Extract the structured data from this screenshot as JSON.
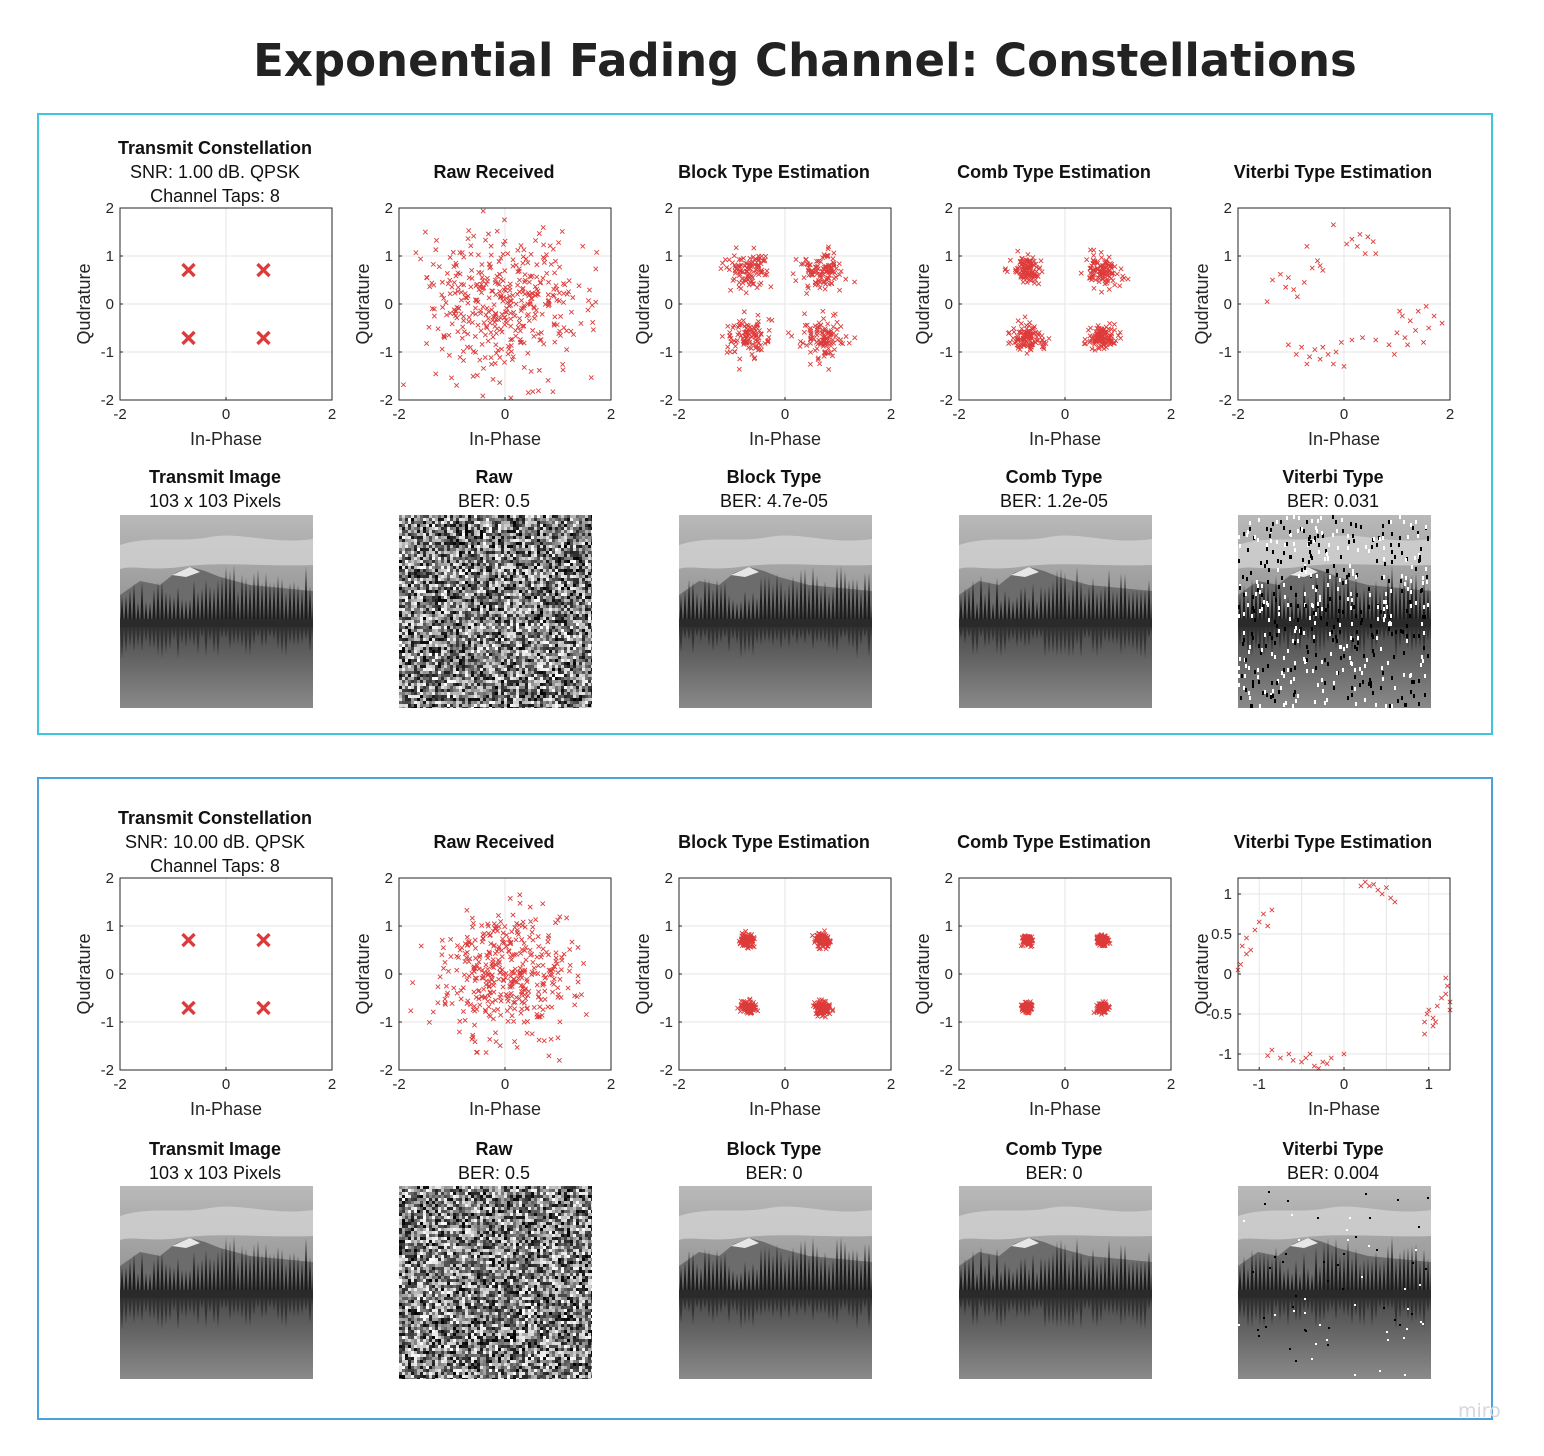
{
  "page": {
    "title": "Exponential Fading Channel: Constellations",
    "watermark": "miro"
  },
  "colors": {
    "marker": "#dd3b3b",
    "panel_border_top": "#3fc6dc",
    "panel_border_bottom": "#4aa1dd",
    "grid": "#e6e6e6",
    "axes": "#262626"
  },
  "panels": [
    {
      "charts": [
        {
          "title_lines": [
            "Transmit Constellation",
            "SNR: 1.00 dB. QPSK",
            "Channel Taps: 8"
          ],
          "xlabel": "In-Phase",
          "ylabel": "Qudrature"
        },
        {
          "title_lines": [
            "Raw Received"
          ],
          "xlabel": "In-Phase",
          "ylabel": "Qudrature"
        },
        {
          "title_lines": [
            "Block Type Estimation"
          ],
          "xlabel": "In-Phase",
          "ylabel": "Qudrature"
        },
        {
          "title_lines": [
            "Comb Type Estimation"
          ],
          "xlabel": "In-Phase",
          "ylabel": "Qudrature"
        },
        {
          "title_lines": [
            "Viterbi Type Estimation"
          ],
          "xlabel": "In-Phase",
          "ylabel": "Qudrature"
        }
      ],
      "images": [
        {
          "title": "Transmit Image",
          "subtitle": "103 x 103 Pixels",
          "kind": "clean"
        },
        {
          "title": "Raw",
          "subtitle": "BER: 0.5",
          "kind": "noise"
        },
        {
          "title": "Block Type",
          "subtitle": "BER: 4.7e-05",
          "kind": "clean"
        },
        {
          "title": "Comb Type",
          "subtitle": "BER: 1.2e-05",
          "kind": "clean"
        },
        {
          "title": "Viterbi Type",
          "subtitle": "BER: 0.031",
          "kind": "corrupt"
        }
      ]
    },
    {
      "charts": [
        {
          "title_lines": [
            "Transmit Constellation",
            "SNR: 10.00 dB. QPSK",
            "Channel Taps: 8"
          ],
          "xlabel": "In-Phase",
          "ylabel": "Qudrature"
        },
        {
          "title_lines": [
            "Raw Received"
          ],
          "xlabel": "In-Phase",
          "ylabel": "Qudrature"
        },
        {
          "title_lines": [
            "Block Type Estimation"
          ],
          "xlabel": "In-Phase",
          "ylabel": "Qudrature"
        },
        {
          "title_lines": [
            "Comb Type Estimation"
          ],
          "xlabel": "In-Phase",
          "ylabel": "Qudrature"
        },
        {
          "title_lines": [
            "Viterbi Type Estimation"
          ],
          "xlabel": "In-Phase",
          "ylabel": "Qudrature"
        }
      ],
      "images": [
        {
          "title": "Transmit Image",
          "subtitle": "103 x 103 Pixels",
          "kind": "clean"
        },
        {
          "title": "Raw",
          "subtitle": "BER: 0.5",
          "kind": "noise"
        },
        {
          "title": "Block Type",
          "subtitle": "BER: 0",
          "kind": "clean"
        },
        {
          "title": "Comb Type",
          "subtitle": "BER: 0",
          "kind": "clean"
        },
        {
          "title": "Viterbi Type",
          "subtitle": "BER: 0.004",
          "kind": "corrupt"
        }
      ]
    }
  ],
  "chart_data": [
    {
      "type": "scatter",
      "title": "Transmit Constellation",
      "subtitle": "SNR: 1.00 dB. QPSK / Channel Taps: 8",
      "xlabel": "In-Phase",
      "ylabel": "Qudrature",
      "xlim": [
        -2,
        2
      ],
      "ylim": [
        -2,
        2
      ],
      "xticks": [
        -2,
        0,
        2
      ],
      "yticks": [
        -2,
        -1,
        0,
        1,
        2
      ],
      "grid": true,
      "marker": "x-large",
      "points": [
        [
          -0.707,
          0.707
        ],
        [
          0.707,
          0.707
        ],
        [
          -0.707,
          -0.707
        ],
        [
          0.707,
          -0.707
        ]
      ]
    },
    {
      "type": "scatter",
      "title": "Raw Received",
      "xlabel": "In-Phase",
      "ylabel": "Qudrature",
      "xlim": [
        -2,
        2
      ],
      "ylim": [
        -2,
        2
      ],
      "xticks": [
        -2,
        0,
        2
      ],
      "yticks": [
        -2,
        -1,
        0,
        1,
        2
      ],
      "grid": true,
      "marker": "x-small",
      "clusters": [
        {
          "center": [
            0,
            0
          ],
          "spread": 0.75,
          "count": 420,
          "distribution": "gaussian"
        }
      ]
    },
    {
      "type": "scatter",
      "title": "Block Type Estimation",
      "xlabel": "In-Phase",
      "ylabel": "Qudrature",
      "xlim": [
        -2,
        2
      ],
      "ylim": [
        -2,
        2
      ],
      "xticks": [
        -2,
        0,
        2
      ],
      "yticks": [
        -2,
        -1,
        0,
        1,
        2
      ],
      "grid": true,
      "marker": "x-small",
      "clusters": [
        {
          "center": [
            -0.707,
            0.707
          ],
          "spread": 0.2,
          "count": 110
        },
        {
          "center": [
            0.707,
            0.707
          ],
          "spread": 0.2,
          "count": 110
        },
        {
          "center": [
            -0.707,
            -0.707
          ],
          "spread": 0.22,
          "count": 110
        },
        {
          "center": [
            0.707,
            -0.707
          ],
          "spread": 0.22,
          "count": 110
        }
      ]
    },
    {
      "type": "scatter",
      "title": "Comb Type Estimation",
      "xlabel": "In-Phase",
      "ylabel": "Qudrature",
      "xlim": [
        -2,
        2
      ],
      "ylim": [
        -2,
        2
      ],
      "xticks": [
        -2,
        0,
        2
      ],
      "yticks": [
        -2,
        -1,
        0,
        1,
        2
      ],
      "grid": true,
      "marker": "x-small",
      "clusters": [
        {
          "center": [
            -0.707,
            0.707
          ],
          "spread": 0.14,
          "count": 110
        },
        {
          "center": [
            0.707,
            0.707
          ],
          "spread": 0.16,
          "count": 110
        },
        {
          "center": [
            -0.707,
            -0.707
          ],
          "spread": 0.14,
          "count": 110
        },
        {
          "center": [
            0.707,
            -0.707
          ],
          "spread": 0.13,
          "count": 110
        }
      ]
    },
    {
      "type": "scatter",
      "title": "Viterbi Type Estimation",
      "xlabel": "In-Phase",
      "ylabel": "Qudrature",
      "xlim": [
        -2,
        2
      ],
      "ylim": [
        -2,
        2
      ],
      "xticks": [
        -2,
        0,
        2
      ],
      "yticks": [
        -2,
        -1,
        0,
        1,
        2
      ],
      "grid": true,
      "marker": "x-small",
      "points": [
        [
          -1.05,
          0.55
        ],
        [
          -0.95,
          0.3
        ],
        [
          -0.88,
          0.15
        ],
        [
          -1.2,
          0.62
        ],
        [
          -1.35,
          0.5
        ],
        [
          -0.75,
          0.45
        ],
        [
          -0.6,
          0.75
        ],
        [
          -0.7,
          1.2
        ],
        [
          -0.5,
          0.9
        ],
        [
          -0.4,
          0.7
        ],
        [
          -1.1,
          0.35
        ],
        [
          -0.2,
          1.65
        ],
        [
          0.05,
          1.25
        ],
        [
          0.15,
          1.35
        ],
        [
          0.3,
          1.45
        ],
        [
          0.45,
          1.4
        ],
        [
          0.55,
          1.3
        ],
        [
          0.25,
          1.2
        ],
        [
          0.4,
          1.05
        ],
        [
          0.6,
          1.05
        ],
        [
          -0.45,
          0.8
        ],
        [
          1.1,
          -0.25
        ],
        [
          1.25,
          -0.35
        ],
        [
          1.4,
          -0.15
        ],
        [
          1.55,
          -0.05
        ],
        [
          1.7,
          -0.25
        ],
        [
          1.85,
          -0.4
        ],
        [
          1.6,
          -0.5
        ],
        [
          1.35,
          -0.55
        ],
        [
          1.15,
          -0.7
        ],
        [
          1.0,
          -0.6
        ],
        [
          0.85,
          -0.85
        ],
        [
          1.2,
          -0.85
        ],
        [
          0.95,
          -1.05
        ],
        [
          0.6,
          -0.75
        ],
        [
          0.35,
          -0.7
        ],
        [
          0.15,
          -0.75
        ],
        [
          -0.05,
          -0.8
        ],
        [
          -0.15,
          -1.0
        ],
        [
          -0.3,
          -1.05
        ],
        [
          -0.55,
          -0.95
        ],
        [
          -0.65,
          -1.1
        ],
        [
          -0.8,
          -0.9
        ],
        [
          -0.9,
          -1.05
        ],
        [
          -1.05,
          -0.85
        ],
        [
          -0.45,
          -1.15
        ],
        [
          -0.2,
          -1.25
        ],
        [
          0.0,
          -1.3
        ],
        [
          -0.7,
          -1.25
        ],
        [
          1.5,
          -0.8
        ],
        [
          1.05,
          -0.15
        ],
        [
          -1.45,
          0.05
        ],
        [
          -0.4,
          -0.9
        ]
      ]
    },
    {
      "type": "scatter",
      "title": "Transmit Constellation",
      "subtitle": "SNR: 10.00 dB. QPSK / Channel Taps: 8",
      "xlabel": "In-Phase",
      "ylabel": "Qudrature",
      "xlim": [
        -2,
        2
      ],
      "ylim": [
        -2,
        2
      ],
      "xticks": [
        -2,
        0,
        2
      ],
      "yticks": [
        -2,
        -1,
        0,
        1,
        2
      ],
      "grid": true,
      "marker": "x-large",
      "points": [
        [
          -0.707,
          0.707
        ],
        [
          0.707,
          0.707
        ],
        [
          -0.707,
          -0.707
        ],
        [
          0.707,
          -0.707
        ]
      ]
    },
    {
      "type": "scatter",
      "title": "Raw Received",
      "xlabel": "In-Phase",
      "ylabel": "Qudrature",
      "xlim": [
        -2,
        2
      ],
      "ylim": [
        -2,
        2
      ],
      "xticks": [
        -2,
        0,
        2
      ],
      "yticks": [
        -2,
        -1,
        0,
        1,
        2
      ],
      "grid": true,
      "marker": "x-small",
      "clusters": [
        {
          "center": [
            0,
            0
          ],
          "spread": 0.65,
          "count": 420,
          "distribution": "gaussian"
        }
      ]
    },
    {
      "type": "scatter",
      "title": "Block Type Estimation",
      "xlabel": "In-Phase",
      "ylabel": "Qudrature",
      "xlim": [
        -2,
        2
      ],
      "ylim": [
        -2,
        2
      ],
      "xticks": [
        -2,
        0,
        2
      ],
      "yticks": [
        -2,
        -1,
        0,
        1,
        2
      ],
      "grid": true,
      "marker": "x-small",
      "clusters": [
        {
          "center": [
            -0.707,
            0.707
          ],
          "spread": 0.07,
          "count": 110
        },
        {
          "center": [
            0.707,
            0.707
          ],
          "spread": 0.07,
          "count": 110
        },
        {
          "center": [
            -0.707,
            -0.707
          ],
          "spread": 0.07,
          "count": 110
        },
        {
          "center": [
            0.707,
            -0.707
          ],
          "spread": 0.07,
          "count": 110
        }
      ]
    },
    {
      "type": "scatter",
      "title": "Comb Type Estimation",
      "xlabel": "In-Phase",
      "ylabel": "Qudrature",
      "xlim": [
        -2,
        2
      ],
      "ylim": [
        -2,
        2
      ],
      "xticks": [
        -2,
        0,
        2
      ],
      "yticks": [
        -2,
        -1,
        0,
        1,
        2
      ],
      "grid": true,
      "marker": "x-small",
      "clusters": [
        {
          "center": [
            -0.707,
            0.707
          ],
          "spread": 0.05,
          "count": 110
        },
        {
          "center": [
            0.707,
            0.707
          ],
          "spread": 0.05,
          "count": 110
        },
        {
          "center": [
            -0.707,
            -0.707
          ],
          "spread": 0.05,
          "count": 110
        },
        {
          "center": [
            0.707,
            -0.707
          ],
          "spread": 0.05,
          "count": 110
        }
      ]
    },
    {
      "type": "scatter",
      "title": "Viterbi Type Estimation",
      "xlabel": "In-Phase",
      "ylabel": "Qudrature",
      "xlim": [
        -1.25,
        1.25
      ],
      "ylim": [
        -1.2,
        1.2
      ],
      "xticks": [
        -1,
        0,
        1
      ],
      "yticks": [
        -1,
        -0.5,
        0,
        0.5,
        1
      ],
      "grid": true,
      "marker": "x-small",
      "points": [
        [
          -1.05,
          0.55
        ],
        [
          -1.15,
          0.45
        ],
        [
          -1.2,
          0.35
        ],
        [
          -1.1,
          0.3
        ],
        [
          -1.0,
          0.65
        ],
        [
          -0.95,
          0.75
        ],
        [
          -0.85,
          0.8
        ],
        [
          -0.9,
          0.6
        ],
        [
          -1.22,
          0.12
        ],
        [
          -1.25,
          0.05
        ],
        [
          -1.15,
          0.25
        ],
        [
          0.25,
          1.15
        ],
        [
          0.3,
          1.1
        ],
        [
          0.4,
          1.05
        ],
        [
          0.45,
          1.0
        ],
        [
          0.55,
          0.95
        ],
        [
          0.6,
          0.9
        ],
        [
          0.35,
          1.12
        ],
        [
          0.2,
          1.1
        ],
        [
          0.5,
          1.08
        ],
        [
          1.0,
          -0.45
        ],
        [
          1.05,
          -0.55
        ],
        [
          0.95,
          -0.6
        ],
        [
          1.1,
          -0.4
        ],
        [
          1.15,
          -0.3
        ],
        [
          1.2,
          -0.25
        ],
        [
          1.25,
          -0.35
        ],
        [
          1.05,
          -0.65
        ],
        [
          0.95,
          -0.75
        ],
        [
          1.2,
          -0.05
        ],
        [
          1.22,
          -0.15
        ],
        [
          1.25,
          -0.45
        ],
        [
          0.98,
          -0.5
        ],
        [
          -0.85,
          -0.95
        ],
        [
          -0.75,
          -1.05
        ],
        [
          -0.65,
          -1.0
        ],
        [
          -0.5,
          -1.1
        ],
        [
          -0.4,
          -1.0
        ],
        [
          -0.35,
          -1.15
        ],
        [
          -0.25,
          -1.1
        ],
        [
          -0.15,
          -1.05
        ],
        [
          0.0,
          -1.0
        ],
        [
          -0.6,
          -1.08
        ],
        [
          -0.3,
          -1.18
        ],
        [
          -0.2,
          -1.12
        ],
        [
          -0.9,
          -1.02
        ],
        [
          -0.45,
          -1.05
        ],
        [
          1.08,
          -0.6
        ]
      ]
    }
  ]
}
